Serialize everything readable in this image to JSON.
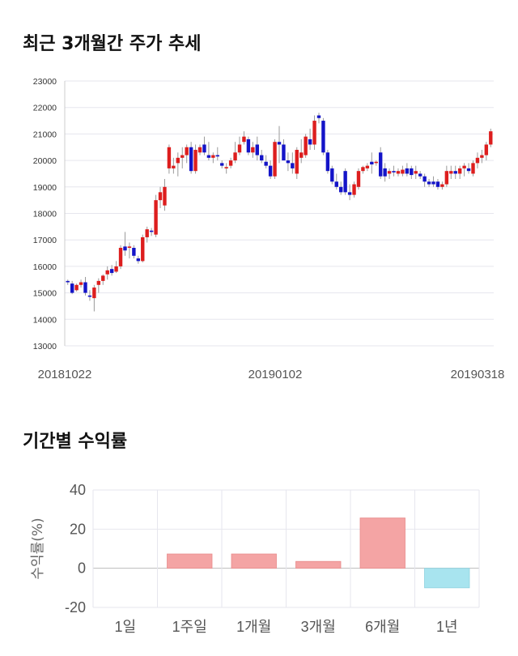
{
  "sections": {
    "price_title": "최근 3개월간 주가 추세",
    "returns_title": "기간별 수익률"
  },
  "colors": {
    "up": "#dd1e1e",
    "down": "#1414c8",
    "wick": "#9a9a9a",
    "grid": "#e6e6ee",
    "positive_bar": "#f4a4a4",
    "negative_bar": "#a8e4ef"
  },
  "chart_data": [
    {
      "type": "candlestick",
      "title": "최근 3개월간 주가 추세",
      "ylim": [
        13000,
        23000
      ],
      "yticks": [
        "13000",
        "14000",
        "15000",
        "16000",
        "17000",
        "18000",
        "19000",
        "20000",
        "21000",
        "22000",
        "23000"
      ],
      "xticks": [
        "20181022",
        "20190102",
        "20190318"
      ],
      "grid": true,
      "candles": [
        [
          15450,
          15500,
          15300,
          15400
        ],
        [
          15350,
          15450,
          14950,
          15000
        ],
        [
          15100,
          15350,
          15050,
          15300
        ],
        [
          15300,
          15500,
          15200,
          15400
        ],
        [
          15400,
          15600,
          14900,
          15000
        ],
        [
          14900,
          15100,
          14700,
          14850
        ],
        [
          14800,
          15300,
          14300,
          15200
        ],
        [
          15300,
          15550,
          15000,
          15450
        ],
        [
          15450,
          15700,
          15300,
          15650
        ],
        [
          15700,
          16000,
          15500,
          15850
        ],
        [
          15900,
          16050,
          15650,
          15750
        ],
        [
          15800,
          16200,
          15750,
          16000
        ],
        [
          16000,
          16800,
          15900,
          16700
        ],
        [
          16750,
          17300,
          16400,
          16600
        ],
        [
          16700,
          16900,
          16300,
          16750
        ],
        [
          16700,
          16800,
          16300,
          16400
        ],
        [
          16300,
          16400,
          16100,
          16200
        ],
        [
          16200,
          17200,
          16150,
          17100
        ],
        [
          17100,
          17500,
          16900,
          17400
        ],
        [
          17350,
          17450,
          17150,
          17300
        ],
        [
          17200,
          18700,
          17100,
          18500
        ],
        [
          18500,
          19000,
          18200,
          18800
        ],
        [
          18300,
          19300,
          18100,
          19000
        ],
        [
          19700,
          20600,
          19500,
          20500
        ],
        [
          19700,
          20100,
          19500,
          19800
        ],
        [
          19900,
          20300,
          19400,
          20100
        ],
        [
          20100,
          20500,
          19700,
          20200
        ],
        [
          20200,
          20600,
          19900,
          20500
        ],
        [
          20500,
          20700,
          19500,
          19600
        ],
        [
          19600,
          20600,
          19500,
          20400
        ],
        [
          20300,
          20600,
          20200,
          20500
        ],
        [
          20600,
          20900,
          20200,
          20300
        ],
        [
          20200,
          20700,
          20000,
          20100
        ],
        [
          20100,
          20300,
          19900,
          20200
        ],
        [
          20200,
          20500,
          20000,
          20150
        ],
        [
          19900,
          20000,
          19700,
          19800
        ],
        [
          19700,
          19900,
          19500,
          19750
        ],
        [
          19800,
          20100,
          19700,
          20000
        ],
        [
          20000,
          20700,
          19900,
          20300
        ],
        [
          20300,
          20900,
          20200,
          20600
        ],
        [
          20700,
          21100,
          20600,
          20900
        ],
        [
          20800,
          20900,
          20200,
          20300
        ],
        [
          20300,
          20700,
          20100,
          20500
        ],
        [
          20600,
          20900,
          20000,
          20200
        ],
        [
          20200,
          20400,
          19900,
          20000
        ],
        [
          19950,
          20200,
          19700,
          19800
        ],
        [
          19800,
          20000,
          19300,
          19400
        ],
        [
          19400,
          20800,
          19300,
          20700
        ],
        [
          20700,
          21300,
          19900,
          20600
        ],
        [
          20600,
          20800,
          20100,
          20000
        ],
        [
          20000,
          20300,
          19600,
          19900
        ],
        [
          19900,
          20300,
          19500,
          19700
        ],
        [
          19500,
          20500,
          19300,
          20400
        ],
        [
          20100,
          20800,
          19900,
          20300
        ],
        [
          20200,
          21000,
          20100,
          20900
        ],
        [
          20800,
          21200,
          20400,
          20600
        ],
        [
          20600,
          21700,
          20400,
          21500
        ],
        [
          21700,
          21800,
          21400,
          21600
        ],
        [
          21500,
          21600,
          20200,
          20300
        ],
        [
          20300,
          20400,
          19500,
          19600
        ],
        [
          19700,
          19800,
          19100,
          19200
        ],
        [
          19200,
          19500,
          18900,
          19000
        ],
        [
          19000,
          19200,
          18700,
          18800
        ],
        [
          19600,
          19700,
          18700,
          18800
        ],
        [
          18800,
          19100,
          18500,
          18700
        ],
        [
          18700,
          19200,
          18600,
          19100
        ],
        [
          19000,
          19700,
          18900,
          19600
        ],
        [
          19600,
          19800,
          19500,
          19750
        ],
        [
          19700,
          19900,
          19600,
          19800
        ],
        [
          19950,
          20300,
          19500,
          19850
        ],
        [
          19900,
          20000,
          19800,
          19950
        ],
        [
          20300,
          20500,
          19300,
          19400
        ],
        [
          19700,
          19900,
          19200,
          19400
        ],
        [
          19500,
          19700,
          19300,
          19600
        ],
        [
          19600,
          19800,
          19400,
          19550
        ],
        [
          19500,
          19700,
          19400,
          19600
        ],
        [
          19500,
          19800,
          19400,
          19650
        ],
        [
          19700,
          19900,
          19400,
          19500
        ],
        [
          19700,
          19800,
          19300,
          19450
        ],
        [
          19500,
          19800,
          19300,
          19600
        ],
        [
          19500,
          19600,
          19300,
          19400
        ],
        [
          19400,
          19500,
          19000,
          19200
        ],
        [
          19200,
          19300,
          19000,
          19100
        ],
        [
          19200,
          19400,
          19000,
          19100
        ],
        [
          19200,
          19300,
          18900,
          19000
        ],
        [
          19000,
          19200,
          18900,
          19100
        ],
        [
          19100,
          19800,
          19000,
          19600
        ],
        [
          19500,
          19800,
          19300,
          19600
        ],
        [
          19600,
          19800,
          19300,
          19500
        ],
        [
          19500,
          19800,
          19300,
          19700
        ],
        [
          19700,
          19900,
          19400,
          19800
        ],
        [
          19700,
          19900,
          19500,
          19600
        ],
        [
          19500,
          20000,
          19400,
          19900
        ],
        [
          19900,
          20300,
          19700,
          20100
        ],
        [
          20100,
          20400,
          19900,
          20200
        ],
        [
          20200,
          20700,
          20000,
          20600
        ],
        [
          20600,
          21200,
          20500,
          21100
        ]
      ]
    },
    {
      "type": "bar",
      "title": "기간별 수익률",
      "ylabel": "수익률(%)",
      "categories": [
        "1일",
        "1주일",
        "1개월",
        "3개월",
        "6개월",
        "1년"
      ],
      "values": [
        0,
        7.3,
        7.3,
        3.5,
        25.7,
        -10
      ],
      "ylim": [
        -20,
        40
      ],
      "yticks": [
        "-20",
        "0",
        "20",
        "40"
      ],
      "grid": true
    }
  ]
}
